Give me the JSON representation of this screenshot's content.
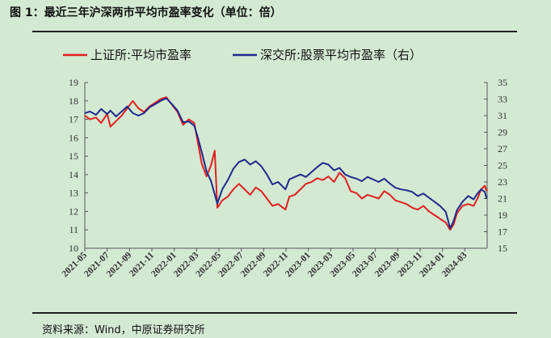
{
  "title": "图 1：最近三年沪深两市平均市盈率变化（单位：倍）",
  "source": "资料来源：Wind，中原证券研究所",
  "colors": {
    "shanghai": "#e02020",
    "shenzhen": "#1f2a8c",
    "axis": "#555555"
  },
  "chart_data": {
    "type": "line",
    "title": "",
    "y_left": {
      "min": 10,
      "max": 19,
      "ticks": [
        10,
        11,
        12,
        13,
        14,
        15,
        16,
        17,
        18,
        19
      ]
    },
    "y_right": {
      "min": 15,
      "max": 35,
      "ticks": [
        15,
        17,
        19,
        21,
        23,
        25,
        27,
        29,
        31,
        33,
        35
      ]
    },
    "x_ticks": [
      "2021-05",
      "2021-07",
      "2021-09",
      "2021-11",
      "2022-01",
      "2022-03",
      "2022-05",
      "2022-07",
      "2022-09",
      "2022-11",
      "2023-01",
      "2023-03",
      "2023-05",
      "2023-07",
      "2023-09",
      "2023-11",
      "2024-01",
      "2024-03"
    ],
    "x_range": [
      "2021-05",
      "2024-05"
    ],
    "grid": false,
    "legend_position": "top",
    "series": [
      {
        "name": "上证所:平均市盈率",
        "axis": "left",
        "color": "#e02020",
        "points": [
          [
            "2021-05-01",
            17.2
          ],
          [
            "2021-05-15",
            17.0
          ],
          [
            "2021-06-01",
            17.1
          ],
          [
            "2021-06-15",
            16.8
          ],
          [
            "2021-07-01",
            17.3
          ],
          [
            "2021-07-10",
            16.6
          ],
          [
            "2021-07-25",
            16.9
          ],
          [
            "2021-08-10",
            17.2
          ],
          [
            "2021-08-25",
            17.6
          ],
          [
            "2021-09-10",
            18.0
          ],
          [
            "2021-09-25",
            17.6
          ],
          [
            "2021-10-10",
            17.4
          ],
          [
            "2021-10-25",
            17.7
          ],
          [
            "2021-11-10",
            17.9
          ],
          [
            "2021-11-25",
            18.1
          ],
          [
            "2021-12-10",
            18.2
          ],
          [
            "2021-12-25",
            17.8
          ],
          [
            "2022-01-10",
            17.4
          ],
          [
            "2022-01-25",
            16.7
          ],
          [
            "2022-02-10",
            17.0
          ],
          [
            "2022-02-25",
            16.8
          ],
          [
            "2022-03-05",
            15.7
          ],
          [
            "2022-03-15",
            14.6
          ],
          [
            "2022-03-28",
            13.9
          ],
          [
            "2022-04-10",
            14.5
          ],
          [
            "2022-04-20",
            15.3
          ],
          [
            "2022-04-27",
            12.2
          ],
          [
            "2022-05-10",
            12.6
          ],
          [
            "2022-05-25",
            12.8
          ],
          [
            "2022-06-10",
            13.2
          ],
          [
            "2022-06-25",
            13.5
          ],
          [
            "2022-07-10",
            13.2
          ],
          [
            "2022-07-25",
            12.9
          ],
          [
            "2022-08-10",
            13.3
          ],
          [
            "2022-08-25",
            13.1
          ],
          [
            "2022-09-10",
            12.7
          ],
          [
            "2022-09-25",
            12.3
          ],
          [
            "2022-10-10",
            12.4
          ],
          [
            "2022-10-30",
            12.1
          ],
          [
            "2022-11-10",
            12.8
          ],
          [
            "2022-11-25",
            12.9
          ],
          [
            "2022-12-10",
            13.2
          ],
          [
            "2022-12-25",
            13.5
          ],
          [
            "2023-01-10",
            13.6
          ],
          [
            "2023-01-25",
            13.8
          ],
          [
            "2023-02-10",
            13.7
          ],
          [
            "2023-02-25",
            13.9
          ],
          [
            "2023-03-10",
            13.6
          ],
          [
            "2023-03-25",
            14.1
          ],
          [
            "2023-04-10",
            13.8
          ],
          [
            "2023-04-25",
            13.1
          ],
          [
            "2023-05-10",
            13.0
          ],
          [
            "2023-05-25",
            12.7
          ],
          [
            "2023-06-10",
            12.9
          ],
          [
            "2023-06-25",
            12.8
          ],
          [
            "2023-07-10",
            12.7
          ],
          [
            "2023-07-25",
            13.1
          ],
          [
            "2023-08-10",
            12.9
          ],
          [
            "2023-08-25",
            12.6
          ],
          [
            "2023-09-10",
            12.5
          ],
          [
            "2023-09-25",
            12.4
          ],
          [
            "2023-10-10",
            12.2
          ],
          [
            "2023-10-25",
            12.1
          ],
          [
            "2023-11-10",
            12.3
          ],
          [
            "2023-11-25",
            12.0
          ],
          [
            "2023-12-10",
            11.8
          ],
          [
            "2023-12-25",
            11.6
          ],
          [
            "2024-01-10",
            11.4
          ],
          [
            "2024-01-22",
            11.0
          ],
          [
            "2024-02-01",
            11.3
          ],
          [
            "2024-02-10",
            11.9
          ],
          [
            "2024-02-25",
            12.3
          ],
          [
            "2024-03-10",
            12.4
          ],
          [
            "2024-03-25",
            12.3
          ],
          [
            "2024-04-05",
            12.7
          ],
          [
            "2024-04-15",
            13.2
          ],
          [
            "2024-04-25",
            13.4
          ],
          [
            "2024-04-30",
            13.1
          ]
        ]
      },
      {
        "name": "深交所:股票平均市盈率（右）",
        "axis": "right",
        "color": "#1f2a8c",
        "points": [
          [
            "2021-05-01",
            31.3
          ],
          [
            "2021-05-15",
            31.5
          ],
          [
            "2021-06-01",
            31.1
          ],
          [
            "2021-06-15",
            31.8
          ],
          [
            "2021-07-01",
            31.2
          ],
          [
            "2021-07-10",
            31.6
          ],
          [
            "2021-07-25",
            30.9
          ],
          [
            "2021-08-10",
            31.5
          ],
          [
            "2021-08-25",
            32.1
          ],
          [
            "2021-09-10",
            31.3
          ],
          [
            "2021-09-25",
            31.0
          ],
          [
            "2021-10-10",
            31.3
          ],
          [
            "2021-10-25",
            32.0
          ],
          [
            "2021-11-10",
            32.4
          ],
          [
            "2021-11-25",
            32.8
          ],
          [
            "2021-12-10",
            33.1
          ],
          [
            "2021-12-25",
            32.4
          ],
          [
            "2022-01-10",
            31.6
          ],
          [
            "2022-01-25",
            30.2
          ],
          [
            "2022-02-10",
            30.3
          ],
          [
            "2022-02-25",
            29.8
          ],
          [
            "2022-03-05",
            28.3
          ],
          [
            "2022-03-15",
            26.6
          ],
          [
            "2022-03-28",
            24.3
          ],
          [
            "2022-04-10",
            23.1
          ],
          [
            "2022-04-27",
            20.4
          ],
          [
            "2022-05-10",
            22.1
          ],
          [
            "2022-05-25",
            23.2
          ],
          [
            "2022-06-10",
            24.6
          ],
          [
            "2022-06-25",
            25.4
          ],
          [
            "2022-07-10",
            25.7
          ],
          [
            "2022-07-25",
            25.1
          ],
          [
            "2022-08-10",
            25.5
          ],
          [
            "2022-08-25",
            24.9
          ],
          [
            "2022-09-10",
            23.9
          ],
          [
            "2022-09-25",
            22.7
          ],
          [
            "2022-10-10",
            23.0
          ],
          [
            "2022-10-30",
            22.1
          ],
          [
            "2022-11-10",
            23.3
          ],
          [
            "2022-11-25",
            23.6
          ],
          [
            "2022-12-10",
            23.9
          ],
          [
            "2022-12-25",
            23.6
          ],
          [
            "2023-01-10",
            24.2
          ],
          [
            "2023-01-25",
            24.8
          ],
          [
            "2023-02-10",
            25.3
          ],
          [
            "2023-02-25",
            25.1
          ],
          [
            "2023-03-10",
            24.4
          ],
          [
            "2023-03-25",
            24.7
          ],
          [
            "2023-04-10",
            23.9
          ],
          [
            "2023-04-25",
            23.6
          ],
          [
            "2023-05-10",
            23.4
          ],
          [
            "2023-05-25",
            23.1
          ],
          [
            "2023-06-10",
            23.6
          ],
          [
            "2023-06-25",
            23.3
          ],
          [
            "2023-07-10",
            23.0
          ],
          [
            "2023-07-25",
            23.4
          ],
          [
            "2023-08-10",
            22.8
          ],
          [
            "2023-08-25",
            22.3
          ],
          [
            "2023-09-10",
            22.1
          ],
          [
            "2023-09-25",
            22.0
          ],
          [
            "2023-10-10",
            21.8
          ],
          [
            "2023-10-25",
            21.3
          ],
          [
            "2023-11-10",
            21.6
          ],
          [
            "2023-11-25",
            21.1
          ],
          [
            "2023-12-10",
            20.6
          ],
          [
            "2023-12-25",
            20.1
          ],
          [
            "2024-01-10",
            19.4
          ],
          [
            "2024-01-22",
            17.4
          ],
          [
            "2024-02-01",
            18.3
          ],
          [
            "2024-02-10",
            19.6
          ],
          [
            "2024-02-25",
            20.6
          ],
          [
            "2024-03-10",
            21.3
          ],
          [
            "2024-03-25",
            20.9
          ],
          [
            "2024-04-05",
            21.6
          ],
          [
            "2024-04-15",
            22.1
          ],
          [
            "2024-04-25",
            21.8
          ],
          [
            "2024-04-30",
            21.0
          ]
        ]
      }
    ]
  }
}
